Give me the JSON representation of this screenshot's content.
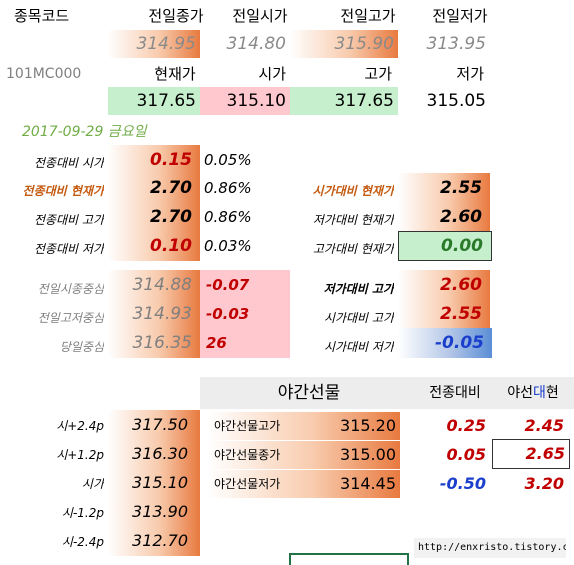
{
  "header": {
    "code_label": "종목코드",
    "prev_close_label": "전일종가",
    "prev_open_label": "전일시가",
    "prev_high_label": "전일고가",
    "prev_low_label": "전일저가",
    "prev_close": "314.95",
    "prev_open": "314.80",
    "prev_high": "315.90",
    "prev_low": "313.95",
    "code": "101MC000",
    "cur_label": "현재가",
    "open_label": "시가",
    "high_label": "고가",
    "low_label": "저가",
    "cur": "317.65",
    "open": "315.10",
    "high": "317.65",
    "low": "315.05"
  },
  "date": "2017-09-29 금요일",
  "vs_prev": [
    {
      "label": "전종대비 시가",
      "value": "0.15",
      "pct": "0.05%"
    },
    {
      "label": "전종대비 현재가",
      "value": "2.70",
      "pct": "0.86%"
    },
    {
      "label": "전종대비 고가",
      "value": "2.70",
      "pct": "0.86%"
    },
    {
      "label": "전종대비 저가",
      "value": "0.10",
      "pct": "0.03%"
    }
  ],
  "right_diff": [
    {
      "label": "시가대비 현재가",
      "value": "2.55"
    },
    {
      "label": "저가대비 현재가",
      "value": "2.60"
    },
    {
      "label": "고가대비 현재가",
      "value": "0.00"
    }
  ],
  "centers": [
    {
      "label": "전일시종중심",
      "value": "314.88",
      "diff": "-0.07"
    },
    {
      "label": "전일고저중심",
      "value": "314.93",
      "diff": "-0.03"
    },
    {
      "label": "당일중심",
      "value": "316.35",
      "diff": "26"
    }
  ],
  "right_diff2": [
    {
      "label": "저가대비 고가",
      "value": "2.60"
    },
    {
      "label": "시가대비 고가",
      "value": "2.55"
    },
    {
      "label": "시가대비 저가",
      "value": "-0.05"
    }
  ],
  "night": {
    "title": "야간선물",
    "col1": "전종대비",
    "col2_a": "야선",
    "col2_b": "대",
    "col2_c": "현",
    "rows": [
      {
        "label": "야간선물고가",
        "value": "315.20",
        "diff": "0.25",
        "vs": "2.45"
      },
      {
        "label": "야간선물종가",
        "value": "315.00",
        "diff": "0.05",
        "vs": "2.65"
      },
      {
        "label": "야간선물저가",
        "value": "314.45",
        "diff": "-0.50",
        "vs": "3.20"
      }
    ]
  },
  "pivots": [
    {
      "label": "시+2.4p",
      "value": "317.50"
    },
    {
      "label": "시+1.2p",
      "value": "316.30"
    },
    {
      "label": "시가",
      "value": "315.10"
    },
    {
      "label": "시-1.2p",
      "value": "313.90"
    },
    {
      "label": "시-2.4p",
      "value": "312.70"
    }
  ],
  "watermark": "http://enxristo.tistory.com"
}
